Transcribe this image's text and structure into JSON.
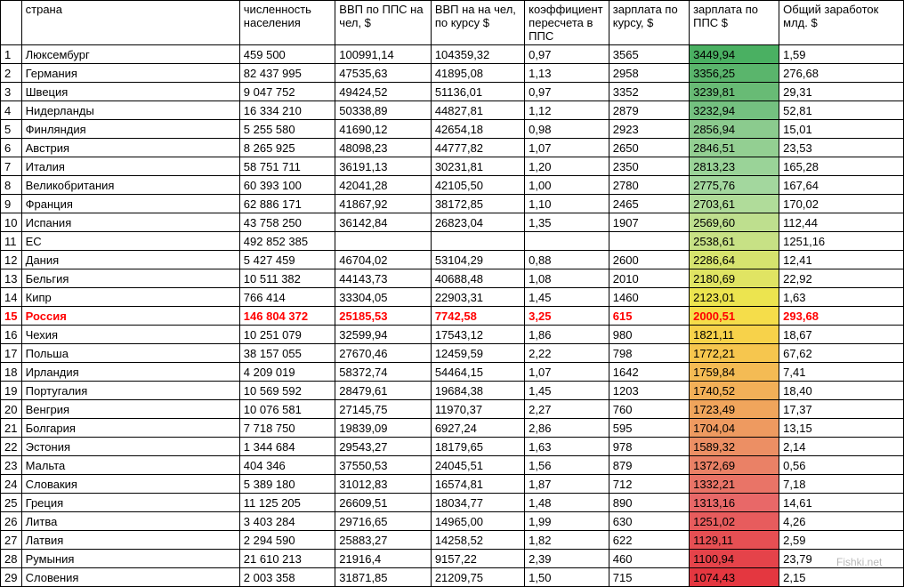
{
  "headers": {
    "idx": "",
    "country": "страна",
    "population": "численность населения",
    "gdp_ppp": "ВВП по ППС  на чел, $",
    "gdp_rate": "ВВП на на чел, по курсу $",
    "coeff": "коэффициент пересчета в ППС",
    "salary_rate": "зарплата по курсу, $",
    "salary_ppp": "зарплата по ППС $",
    "total": "Общий заработок млд. $"
  },
  "colors": {
    "gradient": [
      "#4ab062",
      "#5ab56c",
      "#68bb75",
      "#74c180",
      "#8bcb8e",
      "#93cf92",
      "#9ad398",
      "#a3d79e",
      "#b0dc9a",
      "#bedf8e",
      "#c7e185",
      "#d6e36e",
      "#e0e463",
      "#ece44f",
      "#f5dd4a",
      "#f7d24a",
      "#f6c64e",
      "#f4bb54",
      "#f2b058",
      "#f0a55c",
      "#ee9a60",
      "#ec8f64",
      "#ea8166",
      "#e97467",
      "#e86868",
      "#e75c5d",
      "#e64f53",
      "#e5434a",
      "#e43740"
    ],
    "highlight_text": "#ff0000",
    "border": "#000000",
    "text": "#000000",
    "background": "#ffffff"
  },
  "rows": [
    {
      "idx": "1",
      "country": "Люксембург",
      "population": "459 500",
      "gdp_ppp": "100991,14",
      "gdp_rate": "104359,32",
      "coeff": "0,97",
      "salary_rate": "3565",
      "salary_ppp": "3449,94",
      "total": "1,59",
      "color": "#4ab062"
    },
    {
      "idx": "2",
      "country": "Германия",
      "population": "82 437 995",
      "gdp_ppp": "47535,63",
      "gdp_rate": "41895,08",
      "coeff": "1,13",
      "salary_rate": "2958",
      "salary_ppp": "3356,25",
      "total": "276,68",
      "color": "#5ab56c"
    },
    {
      "idx": "3",
      "country": "Швеция",
      "population": "9 047 752",
      "gdp_ppp": "49424,52",
      "gdp_rate": "51136,01",
      "coeff": "0,97",
      "salary_rate": "3352",
      "salary_ppp": "3239,81",
      "total": "29,31",
      "color": "#68bb75"
    },
    {
      "idx": "4",
      "country": "Нидерланды",
      "population": "16 334 210",
      "gdp_ppp": "50338,89",
      "gdp_rate": "44827,81",
      "coeff": "1,12",
      "salary_rate": "2879",
      "salary_ppp": "3232,94",
      "total": "52,81",
      "color": "#74c180"
    },
    {
      "idx": "5",
      "country": "Финляндия",
      "population": "5 255 580",
      "gdp_ppp": "41690,12",
      "gdp_rate": "42654,18",
      "coeff": "0,98",
      "salary_rate": "2923",
      "salary_ppp": "2856,94",
      "total": "15,01",
      "color": "#8bcb8e"
    },
    {
      "idx": "6",
      "country": "Австрия",
      "population": "8 265 925",
      "gdp_ppp": "48098,23",
      "gdp_rate": "44777,82",
      "coeff": "1,07",
      "salary_rate": "2650",
      "salary_ppp": "2846,51",
      "total": "23,53",
      "color": "#93cf92"
    },
    {
      "idx": "7",
      "country": "Италия",
      "population": "58 751 711",
      "gdp_ppp": "36191,13",
      "gdp_rate": "30231,81",
      "coeff": "1,20",
      "salary_rate": "2350",
      "salary_ppp": "2813,23",
      "total": "165,28",
      "color": "#9ad398"
    },
    {
      "idx": "8",
      "country": "Великобритания",
      "population": "60 393 100",
      "gdp_ppp": "42041,28",
      "gdp_rate": "42105,50",
      "coeff": "1,00",
      "salary_rate": "2780",
      "salary_ppp": "2775,76",
      "total": "167,64",
      "color": "#a3d79e"
    },
    {
      "idx": "9",
      "country": "Франция",
      "population": "62 886 171",
      "gdp_ppp": "41867,92",
      "gdp_rate": "38172,85",
      "coeff": "1,10",
      "salary_rate": "2465",
      "salary_ppp": "2703,61",
      "total": "170,02",
      "color": "#b0dc9a"
    },
    {
      "idx": "10",
      "country": "Испания",
      "population": "43 758 250",
      "gdp_ppp": "36142,84",
      "gdp_rate": "26823,04",
      "coeff": "1,35",
      "salary_rate": "1907",
      "salary_ppp": "2569,60",
      "total": "112,44",
      "color": "#bedf8e"
    },
    {
      "idx": "11",
      "country": " ЕС",
      "population": "492 852 385",
      "gdp_ppp": "",
      "gdp_rate": "",
      "coeff": "",
      "salary_rate": "",
      "salary_ppp": "2538,61",
      "total": "1251,16",
      "color": "#c7e185"
    },
    {
      "idx": "12",
      "country": "Дания",
      "population": "5 427 459",
      "gdp_ppp": "46704,02",
      "gdp_rate": "53104,29",
      "coeff": "0,88",
      "salary_rate": "2600",
      "salary_ppp": "2286,64",
      "total": "12,41",
      "color": "#d6e36e"
    },
    {
      "idx": "13",
      "country": "Бельгия",
      "population": "10 511 382",
      "gdp_ppp": "44143,73",
      "gdp_rate": "40688,48",
      "coeff": "1,08",
      "salary_rate": "2010",
      "salary_ppp": "2180,69",
      "total": "22,92",
      "color": "#e0e463"
    },
    {
      "idx": "14",
      "country": "Кипр",
      "population": "766 414",
      "gdp_ppp": "33304,05",
      "gdp_rate": "22903,31",
      "coeff": "1,45",
      "salary_rate": "1460",
      "salary_ppp": "2123,01",
      "total": "1,63",
      "color": "#ece44f"
    },
    {
      "idx": "15",
      "country": "Россия",
      "population": "146 804 372",
      "gdp_ppp": "25185,53",
      "gdp_rate": "7742,58",
      "coeff": "3,25",
      "salary_rate": "615",
      "salary_ppp": "2000,51",
      "total": "293,68",
      "color": "#f5dd4a",
      "highlight": true
    },
    {
      "idx": "16",
      "country": "Чехия",
      "population": "10 251 079",
      "gdp_ppp": "32599,94",
      "gdp_rate": "17543,12",
      "coeff": "1,86",
      "salary_rate": "980",
      "salary_ppp": "1821,11",
      "total": "18,67",
      "color": "#f7d24a"
    },
    {
      "idx": "17",
      "country": "Польша",
      "population": "38 157 055",
      "gdp_ppp": "27670,46",
      "gdp_rate": "12459,59",
      "coeff": "2,22",
      "salary_rate": "798",
      "salary_ppp": "1772,21",
      "total": "67,62",
      "color": "#f6c64e"
    },
    {
      "idx": "18",
      "country": "Ирландия",
      "population": "4 209 019",
      "gdp_ppp": "58372,74",
      "gdp_rate": "54464,15",
      "coeff": "1,07",
      "salary_rate": "1642",
      "salary_ppp": "1759,84",
      "total": "7,41",
      "color": "#f4bb54"
    },
    {
      "idx": "19",
      "country": "Португалия",
      "population": "10 569 592",
      "gdp_ppp": "28479,61",
      "gdp_rate": "19684,38",
      "coeff": "1,45",
      "salary_rate": "1203",
      "salary_ppp": "1740,52",
      "total": "18,40",
      "color": "#f2b058"
    },
    {
      "idx": "20",
      "country": "Венгрия",
      "population": "10 076 581",
      "gdp_ppp": "27145,75",
      "gdp_rate": "11970,37",
      "coeff": "2,27",
      "salary_rate": "760",
      "salary_ppp": "1723,49",
      "total": "17,37",
      "color": "#f0a55c"
    },
    {
      "idx": "21",
      "country": "Болгария",
      "population": "7 718 750",
      "gdp_ppp": "19839,09",
      "gdp_rate": "6927,24",
      "coeff": "2,86",
      "salary_rate": "595",
      "salary_ppp": "1704,04",
      "total": "13,15",
      "color": "#ee9a60"
    },
    {
      "idx": "22",
      "country": "Эстония",
      "population": "1 344 684",
      "gdp_ppp": "29543,27",
      "gdp_rate": "18179,65",
      "coeff": "1,63",
      "salary_rate": "978",
      "salary_ppp": "1589,32",
      "total": "2,14",
      "color": "#ec8f64"
    },
    {
      "idx": "23",
      "country": "Мальта",
      "population": "404 346",
      "gdp_ppp": "37550,53",
      "gdp_rate": "24045,51",
      "coeff": "1,56",
      "salary_rate": "879",
      "salary_ppp": "1372,69",
      "total": "0,56",
      "color": "#ea8166"
    },
    {
      "idx": "24",
      "country": "Словакия",
      "population": "5 389 180",
      "gdp_ppp": "31012,83",
      "gdp_rate": "16574,81",
      "coeff": "1,87",
      "salary_rate": "712",
      "salary_ppp": "1332,21",
      "total": "7,18",
      "color": "#e97467"
    },
    {
      "idx": "25",
      "country": "Греция",
      "population": "11 125 205",
      "gdp_ppp": "26609,51",
      "gdp_rate": "18034,77",
      "coeff": "1,48",
      "salary_rate": "890",
      "salary_ppp": "1313,16",
      "total": "14,61",
      "color": "#e86868"
    },
    {
      "idx": "26",
      "country": "Литва",
      "population": "3 403 284",
      "gdp_ppp": "29716,65",
      "gdp_rate": "14965,00",
      "coeff": "1,99",
      "salary_rate": "630",
      "salary_ppp": "1251,02",
      "total": "4,26",
      "color": "#e75c5d"
    },
    {
      "idx": "27",
      "country": "Латвия",
      "population": "2 294 590",
      "gdp_ppp": "25883,27",
      "gdp_rate": "14258,52",
      "coeff": "1,82",
      "salary_rate": "622",
      "salary_ppp": "1129,11",
      "total": "2,59",
      "color": "#e64f53"
    },
    {
      "idx": "28",
      "country": "Румыния",
      "population": "21 610 213",
      "gdp_ppp": "21916,4",
      "gdp_rate": "9157,22",
      "coeff": "2,39",
      "salary_rate": "460",
      "salary_ppp": "1100,94",
      "total": "23,79",
      "color": "#e5434a"
    },
    {
      "idx": "29",
      "country": "Словения",
      "population": "2 003 358",
      "gdp_ppp": "31871,85",
      "gdp_rate": "21209,75",
      "coeff": "1,50",
      "salary_rate": "715",
      "salary_ppp": "1074,43",
      "total": "2,15",
      "color": "#e43740"
    }
  ],
  "watermark": "Fishki.net"
}
